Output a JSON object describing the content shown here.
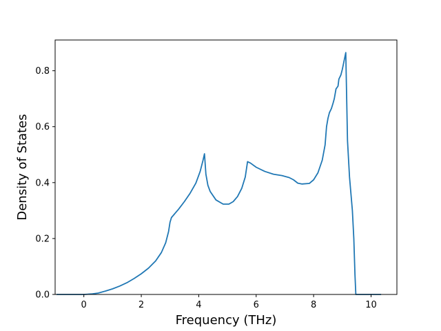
{
  "chart_data": {
    "type": "line",
    "xlabel": "Frequency (THz)",
    "ylabel": "Density of States",
    "xlim": [
      -1.0,
      10.9
    ],
    "ylim": [
      0.0,
      0.91
    ],
    "x_ticks": [
      0,
      2,
      4,
      6,
      8,
      10
    ],
    "y_ticks": [
      0.0,
      0.2,
      0.4,
      0.6,
      0.8
    ],
    "x_tick_labels": [
      "0",
      "2",
      "4",
      "6",
      "8",
      "10"
    ],
    "y_tick_labels": [
      "0.0",
      "0.2",
      "0.4",
      "0.6",
      "0.8"
    ],
    "grid": false,
    "legend": "none",
    "series": [
      {
        "color": "#1f77b4",
        "points": [
          [
            -0.95,
            0.0
          ],
          [
            -0.5,
            0.0
          ],
          [
            0.0,
            0.0
          ],
          [
            0.3,
            0.002
          ],
          [
            0.5,
            0.005
          ],
          [
            0.75,
            0.012
          ],
          [
            1.0,
            0.02
          ],
          [
            1.25,
            0.03
          ],
          [
            1.5,
            0.042
          ],
          [
            1.75,
            0.057
          ],
          [
            2.0,
            0.074
          ],
          [
            2.25,
            0.094
          ],
          [
            2.5,
            0.12
          ],
          [
            2.7,
            0.15
          ],
          [
            2.85,
            0.185
          ],
          [
            2.95,
            0.225
          ],
          [
            3.0,
            0.258
          ],
          [
            3.05,
            0.275
          ],
          [
            3.15,
            0.287
          ],
          [
            3.3,
            0.305
          ],
          [
            3.5,
            0.332
          ],
          [
            3.7,
            0.362
          ],
          [
            3.9,
            0.398
          ],
          [
            4.05,
            0.44
          ],
          [
            4.15,
            0.48
          ],
          [
            4.2,
            0.503
          ],
          [
            4.25,
            0.43
          ],
          [
            4.32,
            0.39
          ],
          [
            4.4,
            0.368
          ],
          [
            4.6,
            0.338
          ],
          [
            4.85,
            0.323
          ],
          [
            5.05,
            0.323
          ],
          [
            5.2,
            0.332
          ],
          [
            5.35,
            0.35
          ],
          [
            5.5,
            0.38
          ],
          [
            5.62,
            0.42
          ],
          [
            5.7,
            0.475
          ],
          [
            5.8,
            0.47
          ],
          [
            6.0,
            0.455
          ],
          [
            6.3,
            0.44
          ],
          [
            6.6,
            0.43
          ],
          [
            6.9,
            0.425
          ],
          [
            7.15,
            0.418
          ],
          [
            7.3,
            0.41
          ],
          [
            7.45,
            0.398
          ],
          [
            7.6,
            0.395
          ],
          [
            7.85,
            0.397
          ],
          [
            8.0,
            0.41
          ],
          [
            8.15,
            0.435
          ],
          [
            8.3,
            0.48
          ],
          [
            8.4,
            0.535
          ],
          [
            8.45,
            0.6
          ],
          [
            8.5,
            0.63
          ],
          [
            8.55,
            0.65
          ],
          [
            8.62,
            0.665
          ],
          [
            8.68,
            0.685
          ],
          [
            8.72,
            0.7
          ],
          [
            8.78,
            0.735
          ],
          [
            8.85,
            0.745
          ],
          [
            8.88,
            0.77
          ],
          [
            8.95,
            0.785
          ],
          [
            9.0,
            0.805
          ],
          [
            9.07,
            0.84
          ],
          [
            9.12,
            0.865
          ],
          [
            9.18,
            0.55
          ],
          [
            9.25,
            0.42
          ],
          [
            9.35,
            0.3
          ],
          [
            9.4,
            0.2
          ],
          [
            9.44,
            0.07
          ],
          [
            9.47,
            0.0
          ],
          [
            9.6,
            0.0
          ],
          [
            10.0,
            0.0
          ],
          [
            10.35,
            0.0
          ]
        ]
      }
    ]
  }
}
